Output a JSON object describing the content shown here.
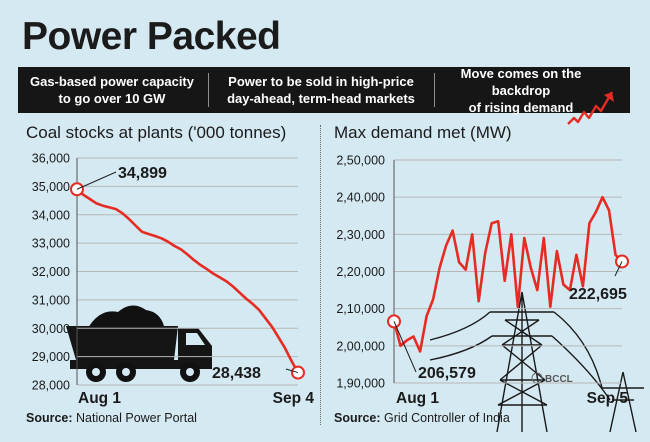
{
  "title": "Power Packed",
  "banner": [
    {
      "line1": "Gas-based power capacity",
      "line2": "to go over 10 GW"
    },
    {
      "line1": "Power to be sold in high-price",
      "line2": "day-ahead, term-head markets"
    },
    {
      "line1": "Move comes on the backdrop",
      "line2": "of rising demand"
    }
  ],
  "watermark": "BCCL",
  "colors": {
    "background": "#d4e9f2",
    "line": "#e62b22",
    "banner": "#161616",
    "grid": "#b7b7b7"
  },
  "chart_data": [
    {
      "type": "line",
      "title": "Coal stocks at plants ('000 tonnes)",
      "source_label": "Source:",
      "source": "National Power Portal",
      "yticks": [
        "36,000",
        "35,000",
        "34,000",
        "33,000",
        "32,000",
        "31,000",
        "30,000",
        "29,000",
        "28,000"
      ],
      "ylim": [
        28000,
        36000
      ],
      "x_labels": [
        "Aug 1",
        "Sep 4"
      ],
      "n_points": 35,
      "series": [
        {
          "values": [
            34899,
            34700,
            34550,
            34400,
            34320,
            34260,
            34200,
            34050,
            33850,
            33620,
            33400,
            33320,
            33250,
            33170,
            33050,
            32900,
            32780,
            32600,
            32400,
            32230,
            32080,
            31920,
            31790,
            31650,
            31470,
            31260,
            31050,
            30860,
            30650,
            30350,
            30050,
            29680,
            29300,
            28850,
            28438
          ]
        }
      ],
      "annotations": [
        {
          "index": 0,
          "text": "34,899"
        },
        {
          "index": 34,
          "text": "28,438"
        }
      ],
      "grid": true,
      "illustration": "coal truck"
    },
    {
      "type": "line",
      "title": "Max demand met (MW)",
      "source_label": "Source:",
      "source": "Grid Controller of India",
      "yticks": [
        "2,50,000",
        "2,40,000",
        "2,30,000",
        "2,20,000",
        "2,10,000",
        "2,00,000",
        "1,90,000"
      ],
      "ylim": [
        190000,
        250000
      ],
      "x_labels": [
        "Aug 1",
        "Sep 5"
      ],
      "n_points": 36,
      "series": [
        {
          "values": [
            206579,
            200000,
            201500,
            202500,
            198500,
            208000,
            212500,
            221000,
            227000,
            231000,
            222500,
            220500,
            230000,
            212000,
            225000,
            233000,
            233500,
            217500,
            230000,
            210500,
            229000,
            221000,
            215000,
            229000,
            210500,
            225500,
            216500,
            215000,
            224500,
            216000,
            233000,
            236000,
            240000,
            236500,
            224500,
            222695
          ]
        }
      ],
      "annotations": [
        {
          "index": 0,
          "text": "206,579"
        },
        {
          "index": 35,
          "text": "222,695"
        }
      ],
      "grid": true,
      "illustration": "transmission towers"
    }
  ]
}
